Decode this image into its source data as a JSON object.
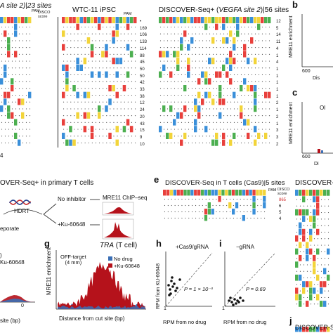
{
  "colors": {
    "A": "#e8403c",
    "C": "#3a8fd9",
    "G": "#f2d43a",
    "T": "#4caf50",
    "match": "#ffffff",
    "red_signal": "#b5121b",
    "blue_signal": "#3a6fb5",
    "pam_green": "#2e7d32"
  },
  "panel_a": {
    "left_header": "A site 2)|23 sites",
    "disco_header": "DISCO\nscore",
    "pam_label": "PAM",
    "mid_header": "WTC-11 iPSC",
    "right_header_pre": "DISCOVER-Seq+ (",
    "right_header_italic": "VEGFA site 2",
    "right_header_post": ")|56 sites",
    "middle_scores": [
      "•",
      "169",
      "106",
      "133",
      "114",
      "88",
      "45",
      "50",
      "50",
      "42",
      "33",
      "38",
      "12",
      "24",
      "20",
      "43",
      "15",
      "9",
      "10"
    ],
    "right_scores": [
      "12",
      "5",
      "14",
      "11",
      "4",
      "1",
      "4",
      "1",
      "1",
      "1",
      "1",
      "1",
      "2",
      "1",
      "2",
      "1",
      "3",
      "3",
      "2"
    ]
  },
  "panel_b": {
    "label": "b",
    "ylabel": "MRE11 enrichment",
    "xtick": "600",
    "xlabel": "Dis"
  },
  "panel_c": {
    "label": "c",
    "ylabel": "MRE11 enrichment",
    "xtick": "600",
    "xlabel": "Di",
    "inset": "Ol"
  },
  "panel_d": {
    "title": "OVER-Seq+ in primary T cells",
    "no_inhibitor": "No inhibitor",
    "chip": "MRE11 ChIP–seq",
    "hdrt": "HDRT",
    "drug": "+Ku-60648",
    "electroporate": "eporate"
  },
  "panel_e": {
    "label": "e",
    "title": "DISCOVER-Seq in T cells (Cas9)|5 sites",
    "disco_header": "DISCO\nscore",
    "pam_label": "PAM",
    "scores": [
      "865",
      "6",
      "5",
      "4"
    ],
    "right_title": "DISCOVER-S"
  },
  "panel_f": {
    "legend_no_drug": ")",
    "legend_drug": "Ku-60648",
    "xlabel": "site (bp)",
    "xtick": "0"
  },
  "panel_g": {
    "label": "g",
    "title_italic": "TRA",
    "title_rest": " (T cell)",
    "ylabel": "MRE11 enrichment",
    "xlabel": "Distance from cut site (bp)",
    "off_target": "OFF-target\n(4 mm)",
    "legend": [
      "No drug",
      "Ku-60648"
    ],
    "legend_prefix": "+"
  },
  "panel_h": {
    "label": "h",
    "title": "+Cas9/gRNA",
    "ylabel": "RPM from KU-60648",
    "xlabel": "RPM from no drug",
    "pvalue": "P = 1 × 10⁻³",
    "tick": "1"
  },
  "panel_i": {
    "label": "i",
    "title": "−gRNA",
    "xlabel": "RPM from no drug",
    "pvalue": "P = 0.69",
    "tick": "1"
  },
  "panel_j": {
    "label": "j",
    "title": "DISCOVER-Seq"
  },
  "panel_a_side_number": "4"
}
